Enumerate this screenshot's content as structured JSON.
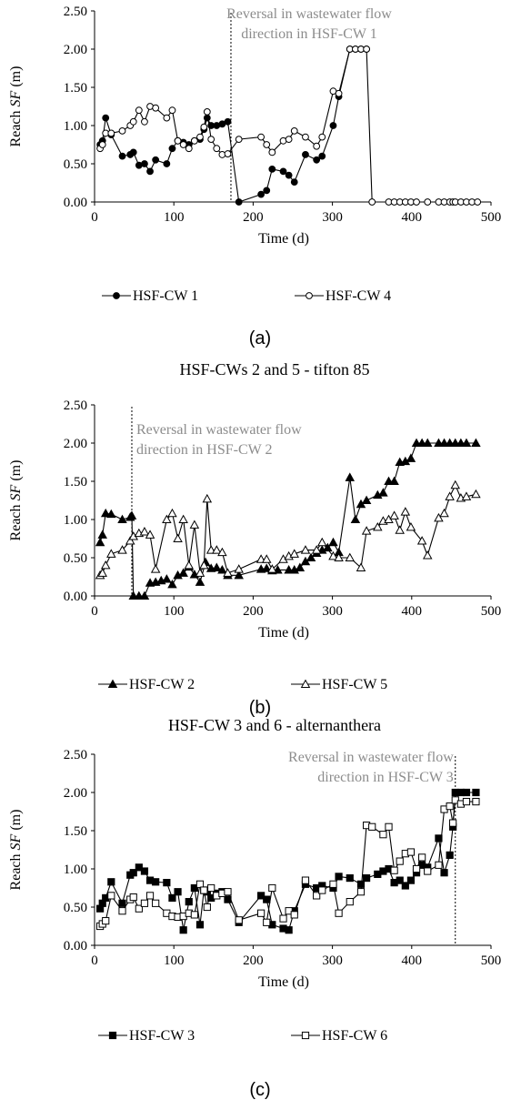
{
  "colors": {
    "line": "#000000",
    "axis": "#000000",
    "reversal_note": "#8c8c8c",
    "marker_open_fill": "#ffffff",
    "marker_filled_fill": "#000000"
  },
  "chart_data": [
    {
      "type": "line",
      "title": "",
      "caption": "(a)",
      "xlabel": "Time (d)",
      "ylabel": "Reach SF (m)",
      "ylabel_parts": {
        "prefix": "Reach ",
        "italic": "SF",
        "suffix": " (m)"
      },
      "xlim": [
        0,
        500
      ],
      "ylim": [
        0,
        2.5
      ],
      "xticks": [
        "0",
        "100",
        "200",
        "300",
        "400",
        "500"
      ],
      "yticks": [
        "0.00",
        "0.50",
        "1.00",
        "1.50",
        "2.00",
        "2.50"
      ],
      "grid": false,
      "legend_position": "bottom",
      "reversal": {
        "x": 172,
        "lines": [
          "Reversal in wastewater flow",
          "direction in HSF-CW 1"
        ]
      },
      "series": [
        {
          "name": "HSF-CW 1",
          "marker": "circle",
          "filled": true,
          "x": [
            7,
            10,
            14,
            21,
            35,
            45,
            49,
            56,
            63,
            70,
            77,
            91,
            98,
            105,
            112,
            119,
            126,
            133,
            138,
            142,
            147,
            154,
            161,
            168,
            182,
            210,
            217,
            224,
            238,
            245,
            252,
            266,
            280,
            287,
            301,
            308,
            322,
            329,
            336,
            343
          ],
          "y": [
            0.75,
            0.8,
            1.1,
            0.88,
            0.6,
            0.62,
            0.65,
            0.48,
            0.5,
            0.4,
            0.55,
            0.5,
            0.7,
            0.8,
            0.78,
            0.75,
            0.8,
            0.82,
            0.95,
            1.1,
            1.0,
            1.0,
            1.02,
            1.05,
            0.0,
            0.1,
            0.15,
            0.43,
            0.4,
            0.35,
            0.26,
            0.62,
            0.55,
            0.6,
            1.0,
            1.38,
            2.0,
            2.0,
            2.0,
            2.0
          ]
        },
        {
          "name": "HSF-CW 4",
          "marker": "circle",
          "filled": false,
          "x": [
            7,
            10,
            14,
            21,
            35,
            45,
            49,
            56,
            63,
            70,
            77,
            91,
            98,
            105,
            112,
            119,
            126,
            133,
            138,
            142,
            147,
            154,
            161,
            168,
            182,
            210,
            217,
            224,
            238,
            245,
            252,
            266,
            280,
            287,
            301,
            308,
            322,
            329,
            336,
            343,
            350,
            371,
            378,
            385,
            392,
            399,
            406,
            420,
            434,
            441,
            448,
            452,
            455,
            462,
            469,
            476,
            483
          ],
          "y": [
            0.7,
            0.75,
            0.9,
            0.9,
            0.93,
            1.0,
            1.05,
            1.2,
            1.05,
            1.25,
            1.23,
            1.1,
            1.2,
            0.8,
            0.75,
            0.7,
            0.8,
            0.85,
            0.98,
            1.18,
            0.82,
            0.7,
            0.62,
            0.63,
            0.82,
            0.85,
            0.75,
            0.65,
            0.8,
            0.82,
            0.93,
            0.85,
            0.73,
            0.85,
            1.45,
            1.42,
            2.0,
            2.0,
            2.0,
            2.0,
            0.0,
            0.0,
            0.0,
            0.0,
            0.0,
            0.0,
            0.0,
            0.0,
            0.0,
            0.0,
            0.0,
            0.0,
            0.0,
            0.0,
            0.0,
            0.0,
            0.0
          ]
        }
      ]
    },
    {
      "type": "line",
      "title": "HSF-CWs 2 and 5 - tifton 85",
      "caption": "(b)",
      "xlabel": "Time (d)",
      "ylabel": "Reach SF (m)",
      "ylabel_parts": {
        "prefix": "Reach ",
        "italic": "SF",
        "suffix": " (m)"
      },
      "xlim": [
        0,
        500
      ],
      "ylim": [
        0,
        2.5
      ],
      "xticks": [
        "0",
        "100",
        "200",
        "300",
        "400",
        "500"
      ],
      "yticks": [
        "0.00",
        "0.50",
        "1.00",
        "1.50",
        "2.00",
        "2.50"
      ],
      "grid": false,
      "legend_position": "bottom",
      "reversal": {
        "x": 47,
        "lines": [
          "Reversal in wastewater flow",
          "direction in HSF-CW 2"
        ]
      },
      "series": [
        {
          "name": "HSF-CW 2",
          "marker": "triangle",
          "filled": true,
          "x": [
            7,
            10,
            14,
            21,
            35,
            45,
            47,
            49,
            56,
            63,
            70,
            77,
            84,
            91,
            98,
            105,
            112,
            119,
            126,
            133,
            140,
            147,
            154,
            161,
            168,
            182,
            210,
            217,
            224,
            231,
            245,
            252,
            259,
            266,
            273,
            280,
            287,
            294,
            301,
            308,
            322,
            329,
            336,
            343,
            357,
            364,
            371,
            378,
            385,
            392,
            399,
            406,
            413,
            420,
            434,
            441,
            448,
            455,
            462,
            469,
            481
          ],
          "y": [
            0.7,
            0.8,
            1.08,
            1.07,
            1.0,
            1.03,
            1.05,
            0.0,
            0.0,
            0.0,
            0.17,
            0.18,
            0.2,
            0.22,
            0.15,
            0.27,
            0.3,
            0.38,
            0.28,
            0.18,
            0.44,
            0.36,
            0.37,
            0.34,
            0.27,
            0.27,
            0.35,
            0.36,
            0.33,
            0.34,
            0.34,
            0.34,
            0.37,
            0.45,
            0.5,
            0.56,
            0.6,
            0.63,
            0.7,
            0.57,
            1.55,
            1.0,
            1.2,
            1.25,
            1.32,
            1.35,
            1.5,
            1.5,
            1.75,
            1.76,
            1.8,
            2.0,
            2.0,
            2.0,
            2.0,
            2.0,
            2.0,
            2.0,
            2.0,
            2.0,
            2.0
          ]
        },
        {
          "name": "HSF-CW 5",
          "marker": "triangle",
          "filled": false,
          "x": [
            7,
            10,
            14,
            21,
            35,
            45,
            49,
            56,
            63,
            70,
            77,
            91,
            98,
            105,
            112,
            119,
            126,
            133,
            138,
            142,
            147,
            154,
            161,
            168,
            182,
            210,
            217,
            224,
            238,
            245,
            252,
            266,
            280,
            287,
            301,
            308,
            322,
            336,
            343,
            357,
            364,
            371,
            378,
            385,
            392,
            399,
            413,
            420,
            434,
            441,
            448,
            455,
            462,
            469,
            481
          ],
          "y": [
            0.27,
            0.3,
            0.4,
            0.55,
            0.6,
            0.72,
            0.78,
            0.82,
            0.84,
            0.8,
            0.35,
            1.0,
            1.08,
            0.75,
            1.0,
            0.4,
            0.93,
            0.3,
            0.4,
            1.27,
            0.6,
            0.6,
            0.57,
            0.3,
            0.35,
            0.48,
            0.48,
            0.35,
            0.48,
            0.52,
            0.55,
            0.6,
            0.6,
            0.7,
            0.52,
            0.5,
            0.5,
            0.37,
            0.85,
            0.9,
            0.98,
            1.0,
            1.05,
            0.86,
            1.1,
            0.9,
            0.72,
            0.53,
            1.02,
            1.08,
            1.3,
            1.45,
            1.28,
            1.3,
            1.33
          ]
        }
      ]
    },
    {
      "type": "line",
      "title": "HSF-CW 3 and 6 - alternanthera",
      "caption": "(c)",
      "xlabel": "Time (d)",
      "ylabel": "Reach SF (m)",
      "ylabel_parts": {
        "prefix": "Reach ",
        "italic": "SF",
        "suffix": " (m)"
      },
      "xlim": [
        0,
        500
      ],
      "ylim": [
        0,
        2.5
      ],
      "xticks": [
        "0",
        "100",
        "200",
        "300",
        "400",
        "500"
      ],
      "yticks": [
        "0.00",
        "0.50",
        "1.00",
        "1.50",
        "2.00",
        "2.50"
      ],
      "grid": false,
      "legend_position": "bottom",
      "reversal": {
        "x": 455,
        "lines": [
          "Reversal in wastewater flow",
          "direction in HSF-CW 3"
        ]
      },
      "series": [
        {
          "name": "HSF-CW 3",
          "marker": "square",
          "filled": true,
          "x": [
            7,
            10,
            14,
            21,
            35,
            45,
            49,
            56,
            63,
            70,
            77,
            91,
            98,
            105,
            112,
            119,
            126,
            133,
            138,
            142,
            147,
            154,
            161,
            168,
            182,
            210,
            217,
            224,
            238,
            245,
            252,
            266,
            280,
            287,
            301,
            308,
            322,
            336,
            343,
            357,
            364,
            371,
            378,
            385,
            392,
            399,
            406,
            413,
            420,
            434,
            441,
            448,
            452,
            455,
            462,
            469,
            481
          ],
          "y": [
            0.48,
            0.55,
            0.62,
            0.83,
            0.55,
            0.92,
            0.95,
            1.02,
            0.97,
            0.85,
            0.83,
            0.82,
            0.62,
            0.7,
            0.2,
            0.57,
            0.75,
            0.27,
            0.72,
            0.7,
            0.62,
            0.68,
            0.7,
            0.6,
            0.3,
            0.65,
            0.6,
            0.27,
            0.22,
            0.2,
            0.45,
            0.8,
            0.75,
            0.78,
            0.75,
            0.9,
            0.88,
            0.8,
            0.88,
            0.93,
            0.97,
            1.0,
            0.82,
            0.85,
            0.78,
            0.85,
            0.95,
            1.05,
            1.02,
            1.4,
            0.95,
            1.18,
            1.55,
            2.0,
            2.0,
            2.0,
            2.0
          ]
        },
        {
          "name": "HSF-CW 6",
          "marker": "square",
          "filled": false,
          "x": [
            7,
            10,
            14,
            21,
            35,
            45,
            49,
            56,
            63,
            70,
            77,
            91,
            98,
            105,
            112,
            119,
            126,
            133,
            138,
            142,
            147,
            154,
            161,
            168,
            182,
            210,
            217,
            224,
            238,
            245,
            252,
            266,
            280,
            287,
            301,
            308,
            322,
            336,
            343,
            350,
            364,
            371,
            378,
            385,
            392,
            399,
            406,
            413,
            420,
            434,
            441,
            448,
            452,
            455,
            462,
            469,
            481
          ],
          "y": [
            0.25,
            0.28,
            0.32,
            0.65,
            0.45,
            0.6,
            0.63,
            0.48,
            0.55,
            0.65,
            0.55,
            0.42,
            0.38,
            0.37,
            0.38,
            0.42,
            0.4,
            0.8,
            0.72,
            0.5,
            0.75,
            0.65,
            0.68,
            0.7,
            0.33,
            0.42,
            0.3,
            0.75,
            0.35,
            0.45,
            0.4,
            0.85,
            0.65,
            0.72,
            0.8,
            0.42,
            0.57,
            0.7,
            1.57,
            1.55,
            1.45,
            1.55,
            0.98,
            1.1,
            1.2,
            1.22,
            1.0,
            1.15,
            0.97,
            1.05,
            1.78,
            1.82,
            1.6,
            1.9,
            1.85,
            1.88,
            1.88
          ]
        }
      ]
    }
  ]
}
